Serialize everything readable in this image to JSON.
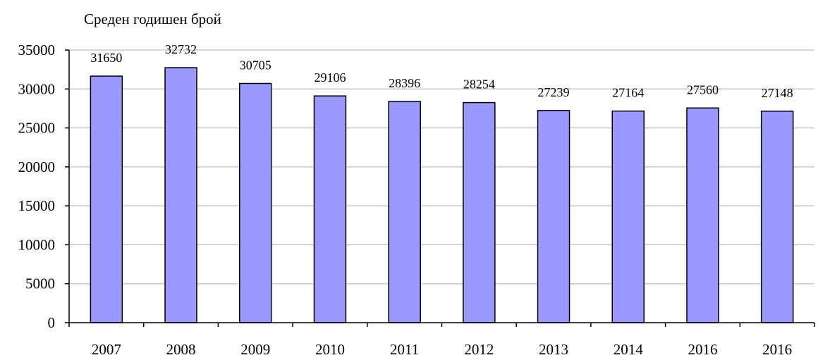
{
  "chart_data": {
    "type": "bar",
    "title": "",
    "ylabel": "Среден годишен брой",
    "xlabel": "",
    "categories": [
      "2007",
      "2008",
      "2009",
      "2010",
      "2011",
      "2012",
      "2013",
      "2014",
      "2016",
      "2016"
    ],
    "values": [
      31650,
      32732,
      30705,
      29106,
      28396,
      28254,
      27239,
      27164,
      27560,
      27148
    ],
    "data_labels": [
      "31650",
      "32732",
      "30705",
      "29106",
      "28396",
      "28254",
      "27239",
      "27164",
      "27560",
      "27148"
    ],
    "ylim": [
      0,
      35000
    ],
    "yticks": [
      0,
      5000,
      10000,
      15000,
      20000,
      25000,
      30000,
      35000
    ],
    "ytick_labels": [
      "0",
      "5000",
      "10000",
      "15000",
      "20000",
      "25000",
      "30000",
      "35000"
    ],
    "grid": true,
    "legend": "none",
    "colors": {
      "bar_fill": "#9999ff",
      "bar_stroke": "#000000",
      "grid": "#c0c0c0",
      "axis": "#000000",
      "text": "#000000"
    }
  }
}
